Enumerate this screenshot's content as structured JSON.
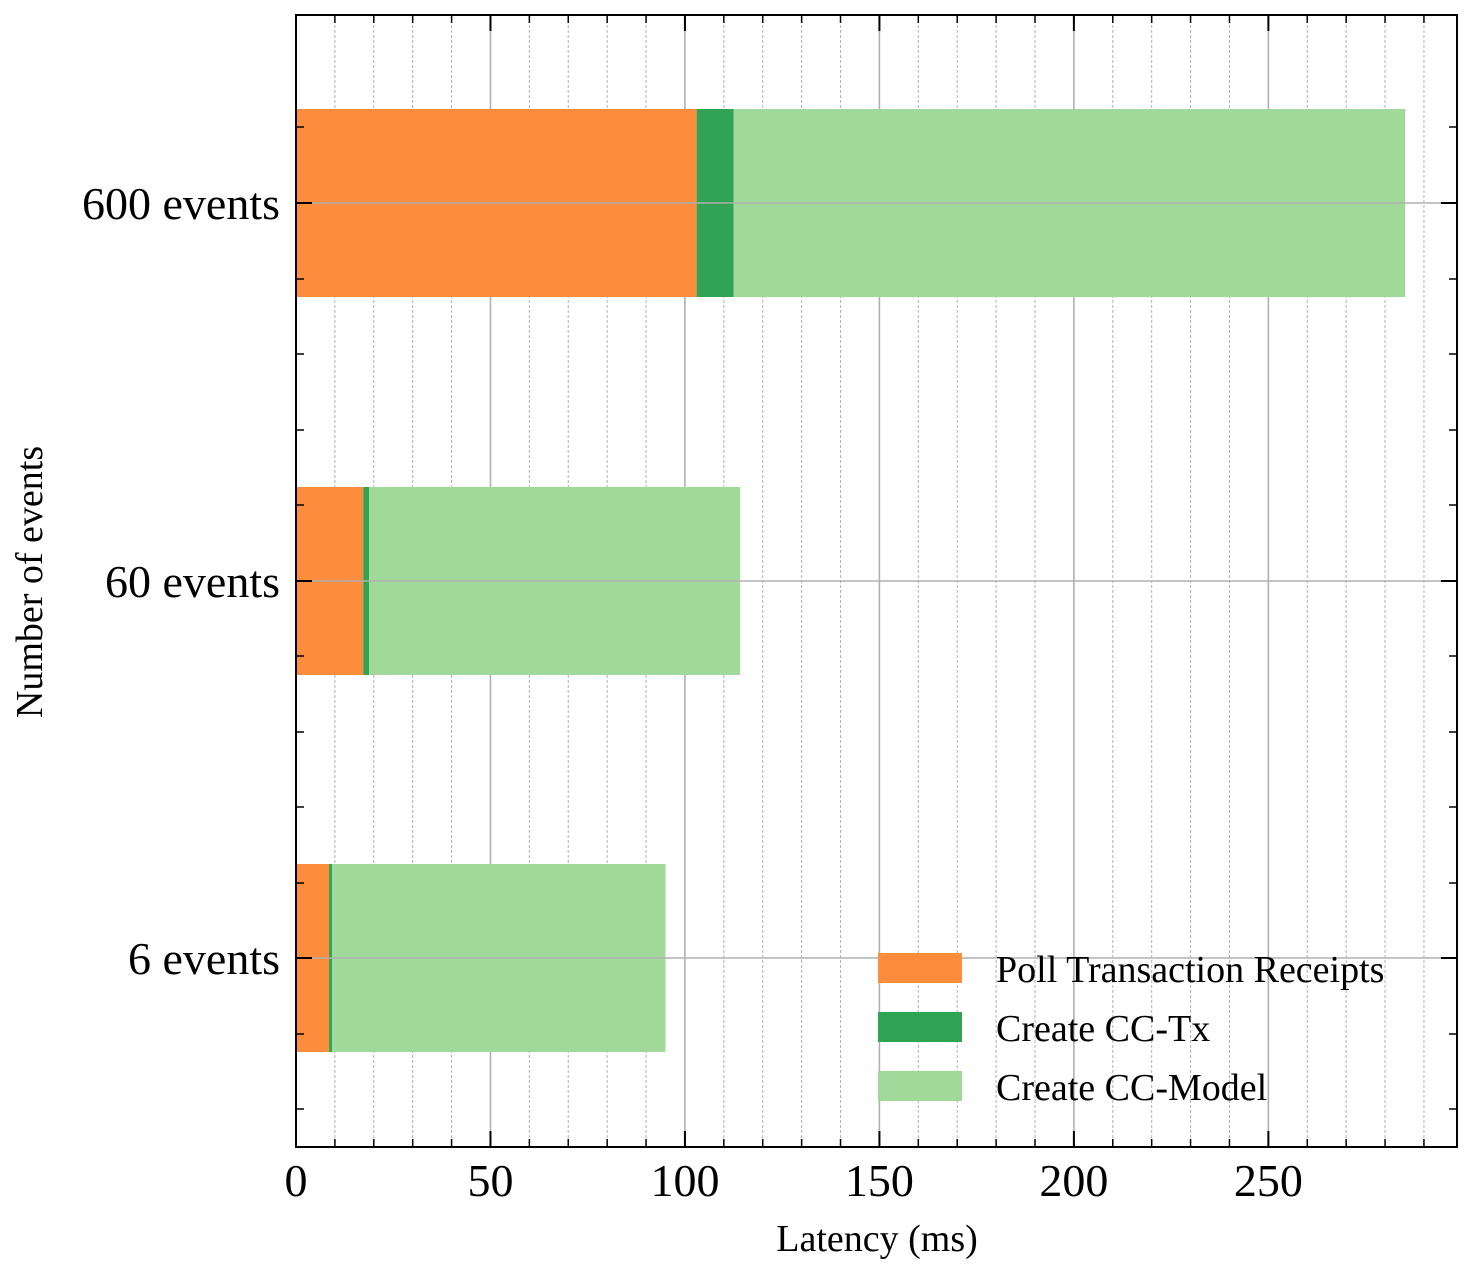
{
  "chart_data": {
    "type": "bar",
    "orientation": "horizontal",
    "stacked": true,
    "title": "",
    "xlabel": "Latency (ms)",
    "ylabel": "Number of events",
    "categories": [
      "6 events",
      "60 events",
      "600 events"
    ],
    "series": [
      {
        "name": "Poll Transaction Receipts",
        "color": "#fd8d3c",
        "values": [
          8.5,
          17.3,
          103.0
        ]
      },
      {
        "name": "Create CC-Tx",
        "color": "#31a354",
        "values": [
          0.8,
          1.5,
          9.5
        ]
      },
      {
        "name": "Create CC-Model",
        "color": "#a1d99b",
        "values": [
          85.7,
          95.4,
          172.7
        ]
      }
    ],
    "xlim": [
      0,
      298.5
    ],
    "xticks": [
      0,
      50,
      100,
      150,
      200,
      250
    ],
    "xtick_labels": [
      "0",
      "50",
      "100",
      "150",
      "200",
      "250"
    ],
    "x_minor_step": 10,
    "grid": true,
    "minor_grid": true,
    "legend_position": "lower-right"
  }
}
